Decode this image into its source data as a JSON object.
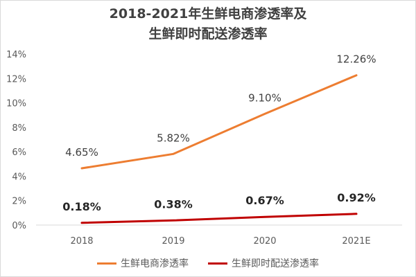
{
  "chart_data": {
    "type": "line",
    "title_line1": "2018-2021年生鲜电商渗透率及",
    "title_line2": "生鲜即时配送渗透率",
    "categories": [
      "2018",
      "2019",
      "2020",
      "2021E"
    ],
    "ylim": [
      0,
      14
    ],
    "y_ticks": [
      0,
      2,
      4,
      6,
      8,
      10,
      12,
      14
    ],
    "y_tick_suffix": "%",
    "grid": false,
    "legend_position": "bottom",
    "series": [
      {
        "name": "生鲜电商渗透率",
        "color": "#ED7D31",
        "values": [
          4.65,
          5.82,
          9.1,
          12.26
        ],
        "labels": [
          "4.65%",
          "5.82%",
          "9.10%",
          "12.26%"
        ],
        "label_bold": false
      },
      {
        "name": "生鲜即时配送渗透率",
        "color": "#C00000",
        "values": [
          0.18,
          0.38,
          0.67,
          0.92
        ],
        "labels": [
          "0.18%",
          "0.38%",
          "0.67%",
          "0.92%"
        ],
        "label_bold": true
      }
    ]
  }
}
